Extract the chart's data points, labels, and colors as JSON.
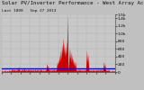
{
  "title": "Solar PV/Inverter Performance - West Array Actual & Average Power Output",
  "subtitle": "Last 1000   Sep 27 2013",
  "bg_color": "#c0c0c0",
  "plot_bg": "#c8c8c8",
  "grid_color": "#888888",
  "area_color": "#cc0000",
  "avg_line_color": "#0000ff",
  "avg_value": 0.055,
  "ylim_max": 1.0,
  "title_fontsize": 4.2,
  "tick_fontsize": 3.2,
  "spike_data": [
    [
      580,
      0.98,
      3
    ],
    [
      570,
      0.55,
      4
    ],
    [
      560,
      0.45,
      5
    ],
    [
      550,
      0.52,
      4
    ],
    [
      540,
      0.6,
      5
    ],
    [
      530,
      0.48,
      4
    ],
    [
      520,
      0.38,
      4
    ],
    [
      510,
      0.3,
      4
    ],
    [
      500,
      0.22,
      5
    ],
    [
      490,
      0.18,
      4
    ],
    [
      600,
      0.42,
      5
    ],
    [
      610,
      0.35,
      4
    ],
    [
      620,
      0.3,
      4
    ],
    [
      630,
      0.25,
      4
    ],
    [
      640,
      0.2,
      4
    ],
    [
      650,
      0.18,
      3
    ],
    [
      750,
      0.38,
      4
    ],
    [
      760,
      0.3,
      4
    ],
    [
      400,
      0.15,
      4
    ],
    [
      410,
      0.12,
      3
    ],
    [
      200,
      0.08,
      3
    ],
    [
      150,
      0.1,
      3
    ],
    [
      900,
      0.18,
      4
    ],
    [
      910,
      0.14,
      3
    ]
  ]
}
